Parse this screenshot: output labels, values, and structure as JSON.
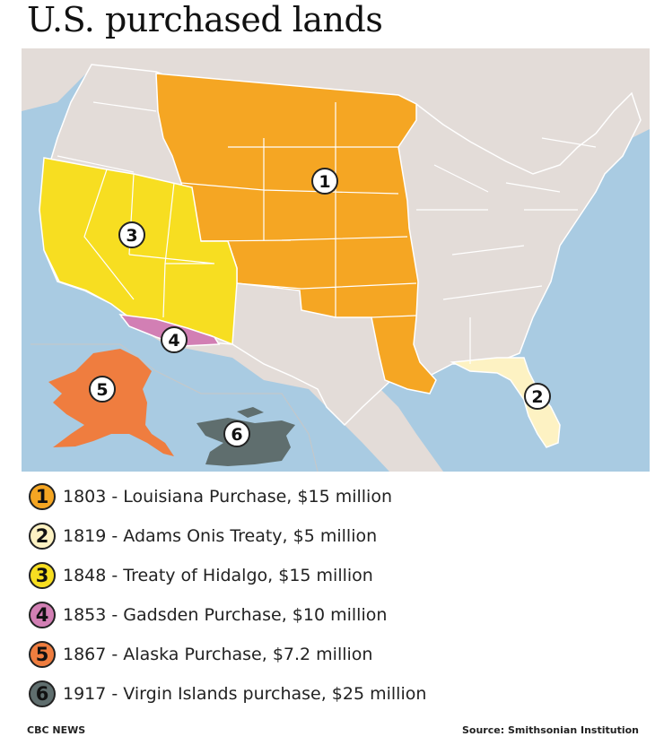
{
  "title": "U.S. purchased lands",
  "colors": {
    "ocean": "#a9cbe2",
    "land": "#e3dcd8",
    "border": "#ffffff",
    "louisiana": "#f5a623",
    "florida": "#fdf2c3",
    "hidalgo": "#f7de21",
    "gadsden": "#d27fb4",
    "alaska": "#ef7d3f",
    "virgin_islands": "#5f6e6e"
  },
  "map_labels": [
    "1",
    "2",
    "3",
    "4",
    "5",
    "6"
  ],
  "legend": [
    {
      "number": "1",
      "text": "1803 - Louisiana Purchase, $15 million",
      "color": "#f5a623"
    },
    {
      "number": "2",
      "text": "1819 - Adams Onis Treaty, $5 million",
      "color": "#fdf2c3"
    },
    {
      "number": "3",
      "text": "1848 - Treaty of Hidalgo, $15 million",
      "color": "#f7de21"
    },
    {
      "number": "4",
      "text": "1853 - Gadsden Purchase, $10 million",
      "color": "#d27fb4"
    },
    {
      "number": "5",
      "text": "1867 - Alaska Purchase, $7.2 million",
      "color": "#ef7d3f"
    },
    {
      "number": "6",
      "text": "1917 - Virgin Islands purchase, $25 million",
      "color": "#5f6e6e"
    }
  ],
  "footer": {
    "left": "CBC NEWS",
    "right": "Source: Smithsonian Institution"
  }
}
